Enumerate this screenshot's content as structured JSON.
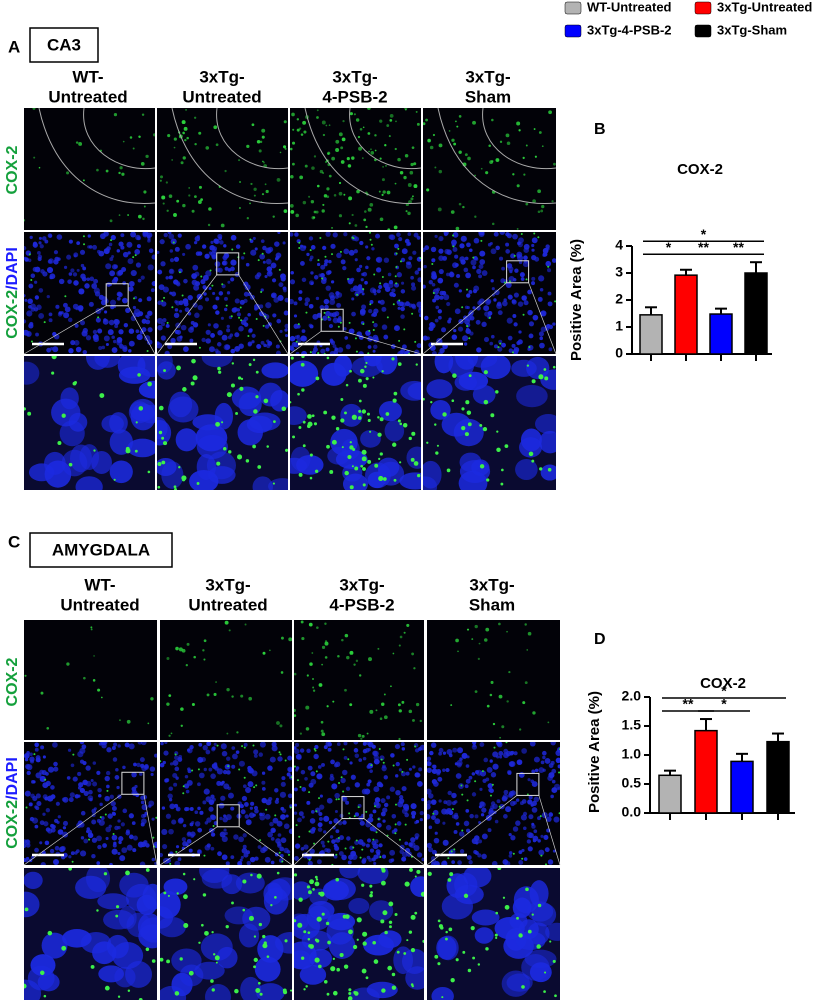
{
  "panels": [
    {
      "letter": "A",
      "region": "CA3",
      "columns": [
        [
          "WT-",
          "Untreated"
        ],
        [
          "3xTg-",
          "Untreated"
        ],
        [
          "3xTg-",
          "4-PSB-2"
        ],
        [
          "3xTg-",
          "Sham"
        ]
      ],
      "row_labels": [
        [
          "COX-2"
        ],
        [
          "COX-2",
          "/DAPI"
        ]
      ]
    },
    {
      "letter": "C",
      "region": "AMYGDALA",
      "columns": [
        [
          "WT-",
          "Untreated"
        ],
        [
          "3xTg-",
          "Untreated"
        ],
        [
          "3xTg-",
          "4-PSB-2"
        ],
        [
          "3xTg-",
          "Sham"
        ]
      ],
      "row_labels": [
        [
          "COX-2"
        ],
        [
          "COX-2",
          "/DAPI"
        ]
      ]
    }
  ],
  "chart_data": [
    {
      "type": "bar",
      "letter": "B",
      "title": "COX-2",
      "y_label": "Positive Area (%)",
      "categories": [
        "WT-Untreated",
        "3xTg-Untreated",
        "3xTg-4-PSB-2",
        "3xTg-Sham"
      ],
      "colors": [
        "#b3b3b3",
        "#ff0000",
        "#0000ff",
        "#000000"
      ],
      "values": [
        1.45,
        2.92,
        1.48,
        3.0
      ],
      "errors": [
        0.28,
        0.2,
        0.2,
        0.4
      ],
      "ylim": [
        0,
        4
      ],
      "yticks": [
        0,
        1,
        2,
        3,
        4
      ],
      "significance": [
        {
          "from": 0,
          "to": 1,
          "label": "*"
        },
        {
          "from": 1,
          "to": 2,
          "label": "**"
        },
        {
          "from": 2,
          "to": 3,
          "label": "**"
        },
        {
          "from": 0,
          "to": 3,
          "label": "*"
        }
      ]
    },
    {
      "type": "bar",
      "letter": "D",
      "title": "COX-2",
      "y_label": "Positive Area (%)",
      "colors": [
        "#b3b3b3",
        "#ff0000",
        "#0000ff",
        "#000000"
      ],
      "values": [
        0.65,
        1.42,
        0.89,
        1.23
      ],
      "errors": [
        0.08,
        0.2,
        0.13,
        0.14
      ],
      "ylim": [
        0,
        2
      ],
      "yticks": [
        {
          "value": 0,
          "label": "0.0"
        },
        {
          "value": 0.5,
          "label": "0.5"
        },
        {
          "value": 1,
          "label": "1.0"
        },
        {
          "value": 1.5,
          "label": "1.5"
        },
        {
          "value": 2,
          "label": "2.0"
        }
      ],
      "significance": [
        {
          "from": 0,
          "to": 1,
          "label": "**"
        },
        {
          "from": 1,
          "to": 2,
          "label": "*"
        },
        {
          "from": 0,
          "to": 3,
          "label": "*"
        }
      ]
    }
  ]
}
